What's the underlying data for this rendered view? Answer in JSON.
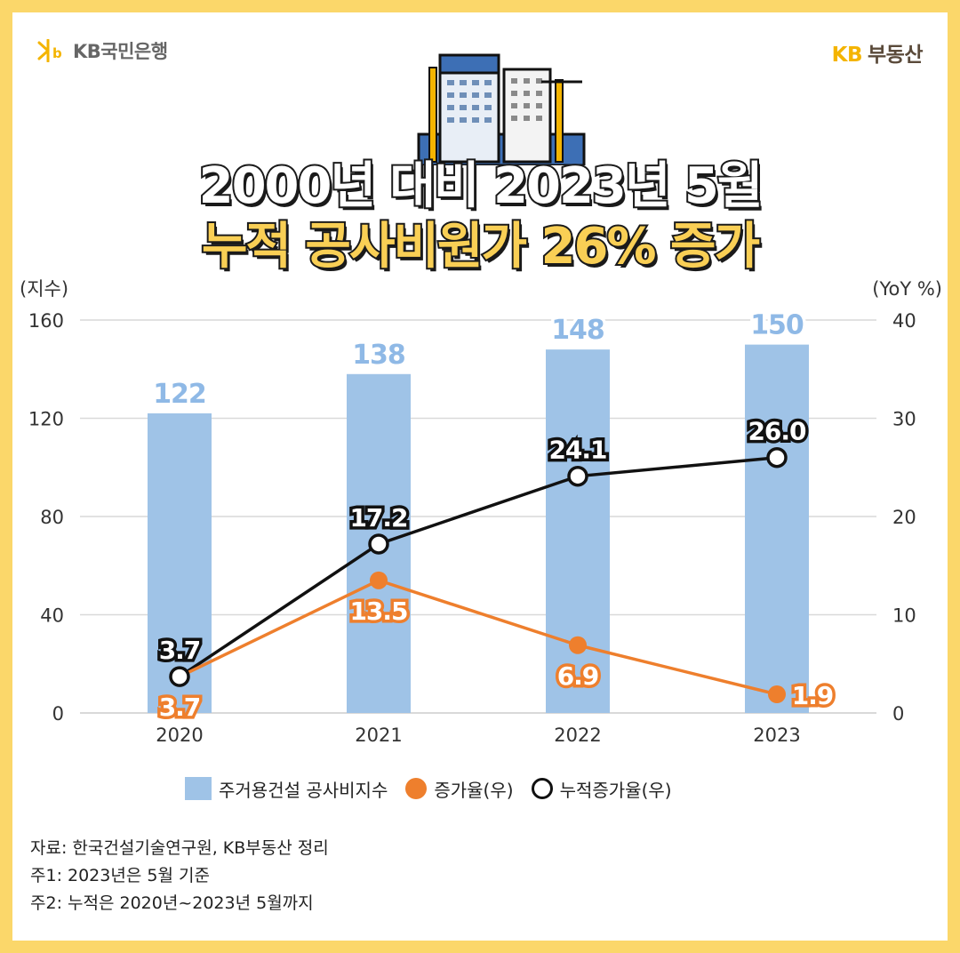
{
  "header": {
    "left_logo": "KB국민은행",
    "right_logo_kb": "KB",
    "right_logo_text": "부동산"
  },
  "title": {
    "line1": "2000년 대비 2023년 5월",
    "line2": "누적 공사비원가 26% 증가"
  },
  "chart_data": {
    "type": "bar",
    "categories": [
      "2020",
      "2021",
      "2022",
      "2023"
    ],
    "y_left": {
      "label": "(지수)",
      "ticks": [
        "0",
        "40",
        "80",
        "120",
        "160"
      ],
      "range": [
        0,
        160
      ]
    },
    "y_right": {
      "label": "(YoY %)",
      "ticks": [
        "0",
        "10",
        "20",
        "30",
        "40"
      ],
      "range": [
        0,
        40
      ]
    },
    "series": [
      {
        "name": "주거용건설 공사비지수",
        "type": "bar",
        "axis": "left",
        "values": [
          122,
          138,
          148,
          150
        ],
        "labels": [
          "122",
          "138",
          "148",
          "150"
        ],
        "color": "#9fc3e7"
      },
      {
        "name": "증가율(우)",
        "type": "line",
        "axis": "right",
        "values": [
          3.7,
          13.5,
          6.9,
          1.9
        ],
        "labels": [
          "3.7",
          "13.5",
          "6.9",
          "1.9"
        ],
        "color": "#ee7f2d"
      },
      {
        "name": "누적증가율(우)",
        "type": "line",
        "axis": "right",
        "values": [
          3.7,
          17.2,
          24.1,
          26.0
        ],
        "labels": [
          "3.7",
          "17.2",
          "24.1",
          "26.0"
        ],
        "color": "#111111"
      }
    ],
    "grid": true,
    "legend_position": "bottom"
  },
  "footnotes": {
    "source": "자료: 한국건설기술연구원, KB부동산 정리",
    "note1": "주1: 2023년은 5월 기준",
    "note2": "주2: 누적은 2020년~2023년 5월까지"
  }
}
